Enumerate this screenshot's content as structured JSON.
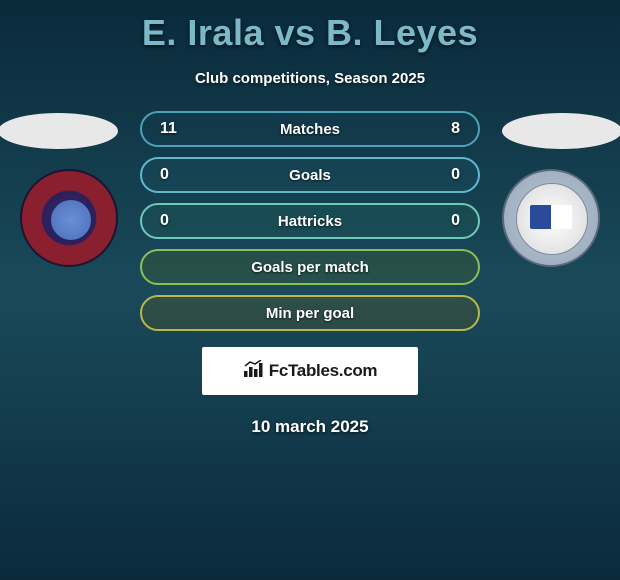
{
  "title": "E. Irala vs B. Leyes",
  "subtitle": "Club competitions, Season 2025",
  "date": "10 march 2025",
  "rows": [
    {
      "label": "Matches",
      "left": "11",
      "right": "8",
      "border": "#4aa3b8",
      "bg": "rgba(20,60,75,0.45)"
    },
    {
      "label": "Goals",
      "left": "0",
      "right": "0",
      "border": "#5fb8d0",
      "bg": "rgba(25,80,95,0.35)"
    },
    {
      "label": "Hattricks",
      "left": "0",
      "right": "0",
      "border": "#6fc8b8",
      "bg": "rgba(30,95,85,0.30)"
    },
    {
      "label": "Goals per match",
      "left": "",
      "right": "",
      "border": "#8abf5a",
      "bg": "rgba(70,100,40,0.30)"
    },
    {
      "label": "Min per goal",
      "left": "",
      "right": "",
      "border": "#b8b84a",
      "bg": "rgba(95,90,30,0.30)"
    }
  ],
  "logo": {
    "text": "FcTables.com",
    "icon_color": "#1a1a1a"
  },
  "players": {
    "left": {
      "team_primary": "#8a1f2f",
      "team_secondary": "#3a2f6b"
    },
    "right": {
      "team_primary": "#2a4a9a",
      "team_secondary": "#b8c8d8"
    }
  }
}
